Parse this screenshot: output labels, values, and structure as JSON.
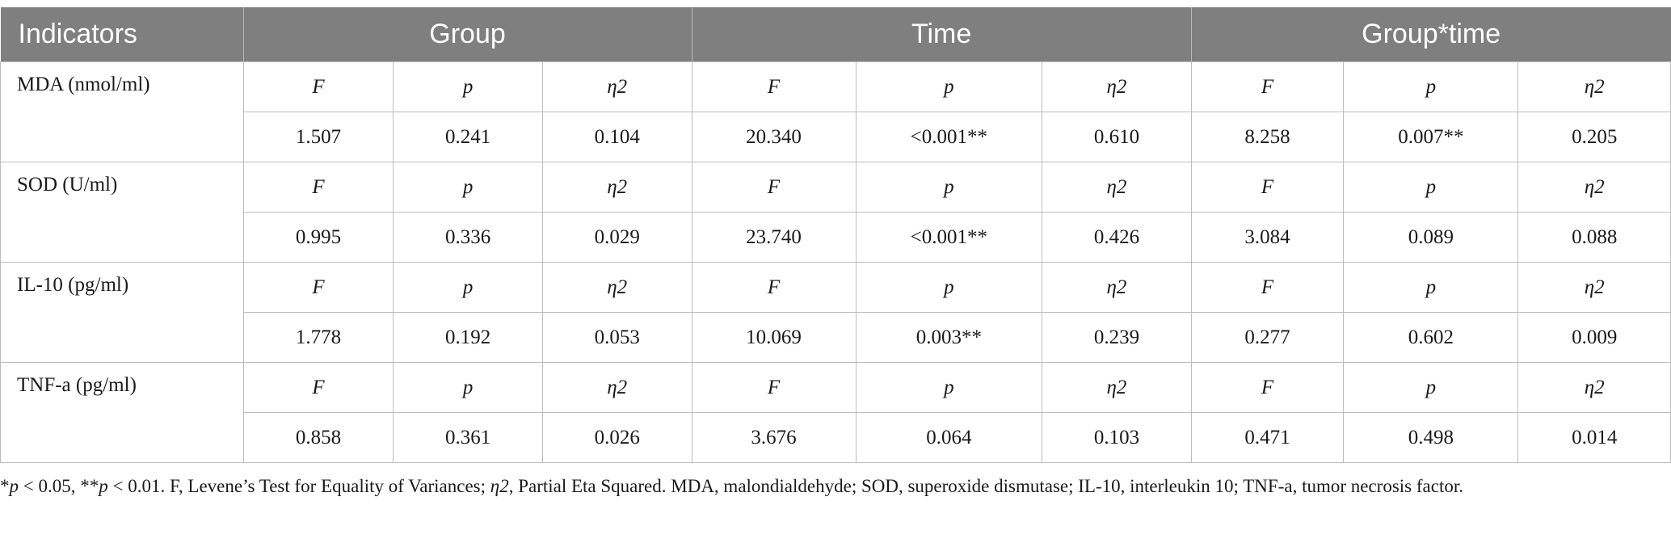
{
  "table": {
    "headers": [
      "Indicators",
      "Group",
      "Time",
      "Group*time"
    ],
    "stat_labels": [
      "F",
      "p",
      "η2",
      "F",
      "p",
      "η2",
      "F",
      "p",
      "η2"
    ],
    "rows": [
      {
        "indicator": "MDA (nmol/ml)",
        "values": [
          "1.507",
          "0.241",
          "0.104",
          "20.340",
          "<0.001**",
          "0.610",
          "8.258",
          "0.007**",
          "0.205"
        ]
      },
      {
        "indicator": "SOD (U/ml)",
        "values": [
          "0.995",
          "0.336",
          "0.029",
          "23.740",
          "<0.001**",
          "0.426",
          "3.084",
          "0.089",
          "0.088"
        ]
      },
      {
        "indicator": "IL-10 (pg/ml)",
        "values": [
          "1.778",
          "0.192",
          "0.053",
          "10.069",
          "0.003**",
          "0.239",
          "0.277",
          "0.602",
          "0.009"
        ]
      },
      {
        "indicator": "TNF-a (pg/ml)",
        "values": [
          "0.858",
          "0.361",
          "0.026",
          "3.676",
          "0.064",
          "0.103",
          "0.471",
          "0.498",
          "0.014"
        ]
      }
    ]
  },
  "footnote": {
    "star1": "*",
    "p1": "p",
    "part1": " < 0.05, **",
    "p2": "p",
    "part2": " < 0.01. F, Levene’s Test for Equality of Variances; ",
    "eta": "η2",
    "part3": ", Partial Eta Squared. MDA, malondialdehyde; SOD, superoxide dismutase; IL-10, interleukin 10; TNF-a, tumor necrosis factor."
  }
}
